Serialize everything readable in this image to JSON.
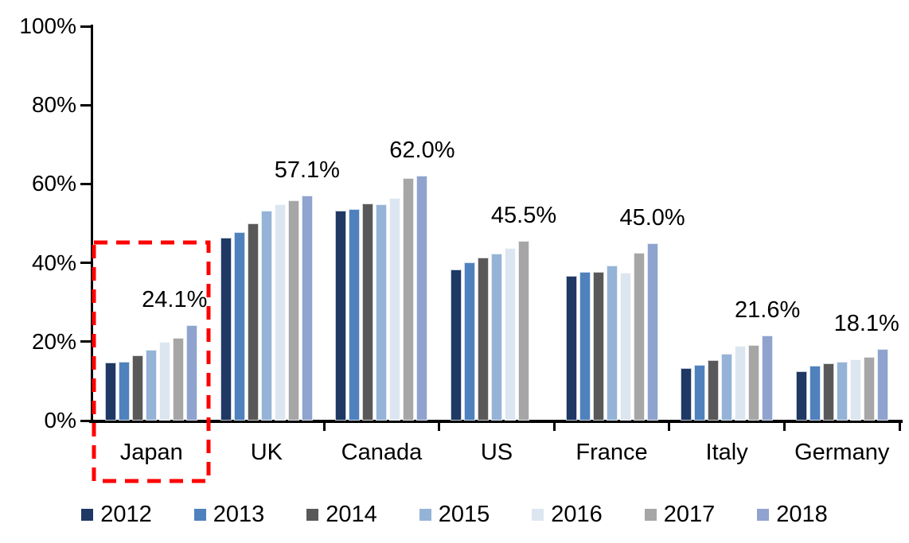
{
  "chart_data": {
    "type": "bar",
    "title": "",
    "categories": [
      "Japan",
      "UK",
      "Canada",
      "US",
      "France",
      "Italy",
      "Germany"
    ],
    "series": [
      {
        "name": "2012",
        "color": "#1F3864",
        "values": [
          14.7,
          46.3,
          53.3,
          38.3,
          36.7,
          13.3,
          12.5
        ]
      },
      {
        "name": "2013",
        "color": "#4F81BD",
        "values": [
          14.9,
          47.8,
          53.7,
          40.2,
          37.8,
          14.2,
          14.0
        ]
      },
      {
        "name": "2014",
        "color": "#595959",
        "values": [
          16.5,
          50.0,
          55.1,
          41.3,
          37.7,
          15.4,
          14.5
        ]
      },
      {
        "name": "2015",
        "color": "#95B3D7",
        "values": [
          18.0,
          53.3,
          54.9,
          42.4,
          39.4,
          17.0,
          15.0
        ]
      },
      {
        "name": "2016",
        "color": "#DCE6F1",
        "values": [
          20.0,
          54.8,
          56.4,
          43.7,
          37.5,
          19.0,
          15.6
        ]
      },
      {
        "name": "2017",
        "color": "#A6A6A6",
        "values": [
          21.0,
          55.8,
          61.4,
          45.5,
          42.5,
          19.2,
          16.2
        ]
      },
      {
        "name": "2018",
        "color": "#8FA3CE",
        "values": [
          24.1,
          57.1,
          62.0,
          null,
          45.0,
          21.6,
          18.1
        ]
      }
    ],
    "data_labels": [
      "24.1%",
      "57.1%",
      "62.0%",
      "45.5%",
      "45.0%",
      "21.6%",
      "18.1%"
    ],
    "xlabel": "",
    "ylabel": "",
    "ylim": [
      0,
      100
    ],
    "ytick_labels": [
      "0%",
      "20%",
      "40%",
      "60%",
      "80%",
      "100%"
    ],
    "grid": false,
    "legend_position": "bottom",
    "legend_entries": [
      "2012",
      "2013",
      "2014",
      "2015",
      "2016",
      "2017",
      "2018"
    ],
    "axis_color": "#000000",
    "highlight": {
      "target": "Japan",
      "shape": "dashed-rectangle",
      "color": "#FF0000"
    }
  }
}
